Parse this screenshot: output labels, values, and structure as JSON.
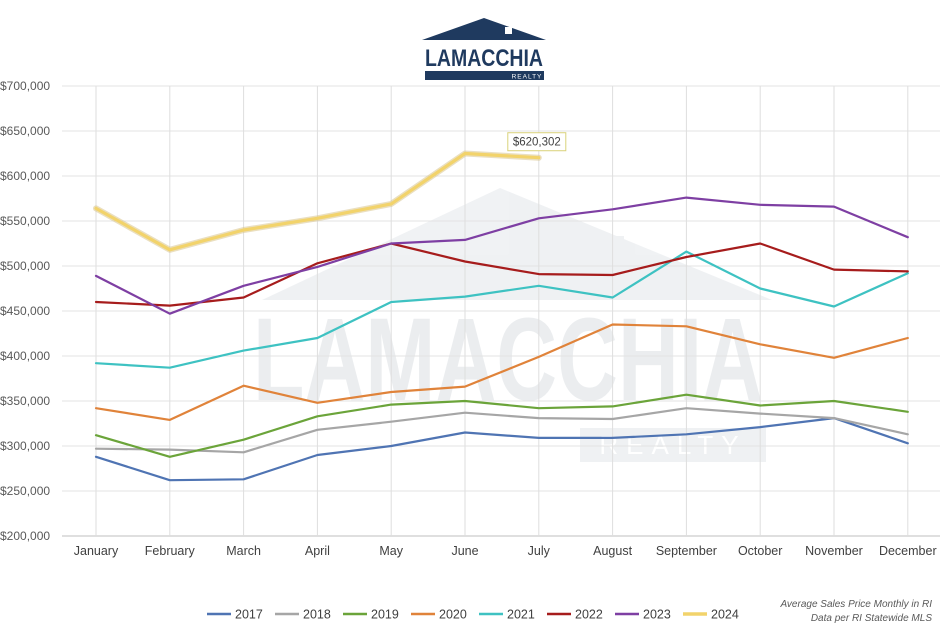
{
  "logo": {
    "name": "LAMACCHIA",
    "sub": "REALTY"
  },
  "watermark": {
    "name": "LAMACCHIA",
    "sub": "REALTY"
  },
  "footnote": {
    "line1": "Average Sales Price Monthly in RI",
    "line2": "Data per RI Statewide MLS"
  },
  "chart_data": {
    "type": "line",
    "categories": [
      "January",
      "February",
      "March",
      "April",
      "May",
      "June",
      "July",
      "August",
      "September",
      "October",
      "November",
      "December"
    ],
    "ylim": [
      200000,
      700000
    ],
    "ytick_labels": [
      "$200,000",
      "$250,000",
      "$300,000",
      "$350,000",
      "$400,000",
      "$450,000",
      "$500,000",
      "$550,000",
      "$600,000",
      "$650,000",
      "$700,000"
    ],
    "grid": true,
    "legend_position": "bottom",
    "series": [
      {
        "name": "2017",
        "color": "#4f74b3",
        "values": [
          288000,
          262000,
          263000,
          290000,
          300000,
          315000,
          309000,
          309000,
          313000,
          321000,
          331000,
          303000
        ]
      },
      {
        "name": "2018",
        "color": "#a6a6a6",
        "values": [
          297000,
          296000,
          293000,
          318000,
          327000,
          337000,
          331000,
          330000,
          342000,
          336000,
          331000,
          313000
        ]
      },
      {
        "name": "2019",
        "color": "#6ba43a",
        "values": [
          312000,
          288000,
          307000,
          333000,
          346000,
          350000,
          342000,
          344000,
          357000,
          345000,
          350000,
          338000
        ]
      },
      {
        "name": "2020",
        "color": "#e0833a",
        "values": [
          342000,
          329000,
          367000,
          348000,
          360000,
          366000,
          399000,
          435000,
          433000,
          413000,
          398000,
          420000
        ]
      },
      {
        "name": "2021",
        "color": "#3ec2c2",
        "values": [
          392000,
          387000,
          406000,
          420000,
          460000,
          466000,
          478000,
          465000,
          516000,
          475000,
          455000,
          492000
        ]
      },
      {
        "name": "2022",
        "color": "#a61c1c",
        "values": [
          460000,
          456000,
          465000,
          503000,
          525000,
          505000,
          491000,
          490000,
          510000,
          525000,
          496000,
          494000
        ]
      },
      {
        "name": "2023",
        "color": "#7e3fa3",
        "values": [
          489000,
          447000,
          478000,
          499000,
          525000,
          529000,
          553000,
          563000,
          576000,
          568000,
          566000,
          532000
        ]
      },
      {
        "name": "2024",
        "color": "#f2d36b",
        "values": [
          564000,
          518000,
          540000,
          553000,
          569000,
          625000,
          620302,
          null,
          null,
          null,
          null,
          null
        ]
      }
    ],
    "annotation": {
      "series": "2024",
      "category": "July",
      "label": "$620,302"
    }
  }
}
